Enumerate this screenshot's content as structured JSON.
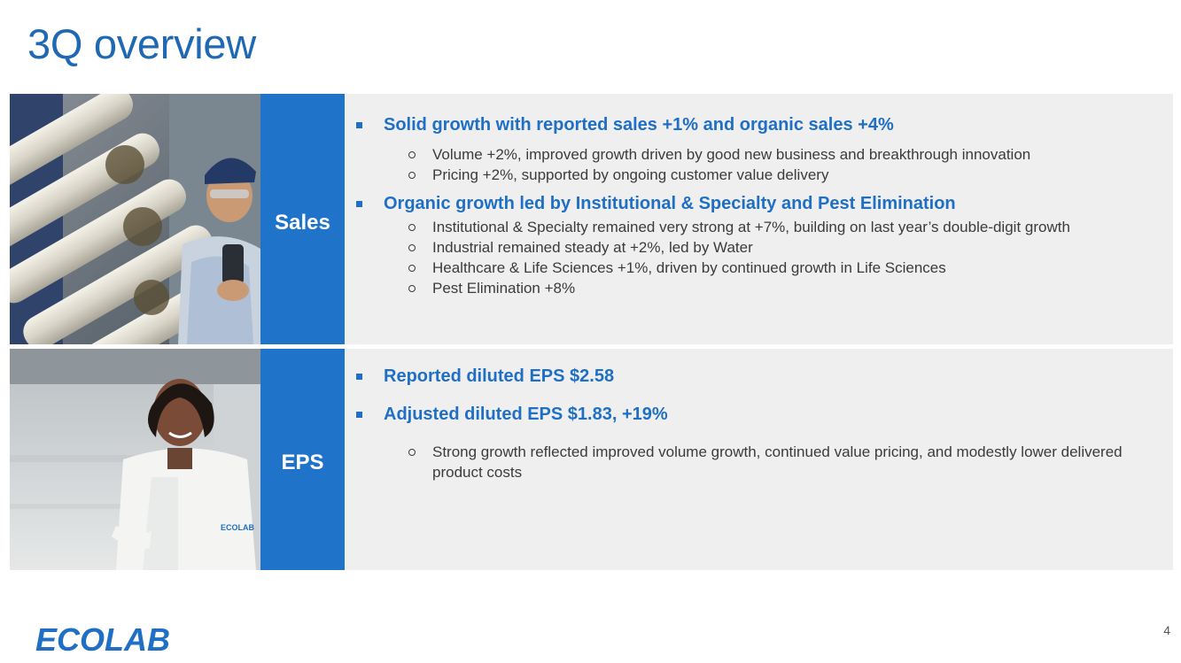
{
  "slide": {
    "title": "3Q overview",
    "page_number": "4",
    "logo_text": "ECOLAB"
  },
  "sections": [
    {
      "label": "Sales",
      "items": [
        {
          "text": "Solid growth with reported sales +1% and organic sales +4%",
          "subitems": [
            "Volume +2%, improved growth driven by good new business and breakthrough innovation",
            "Pricing +2%, supported by ongoing customer value delivery"
          ]
        },
        {
          "text": "Organic growth led by Institutional & Specialty and Pest Elimination",
          "subitems": [
            "Institutional & Specialty remained very strong at +7%, building on last year’s double-digit growth",
            "Industrial remained steady at +2%, led by Water",
            "Healthcare & Life Sciences +1%, driven by continued growth in Life Sciences",
            "Pest Elimination +8%"
          ]
        }
      ]
    },
    {
      "label": "EPS",
      "items": [
        {
          "text": "Reported diluted EPS $2.58",
          "subitems": []
        },
        {
          "text": "Adjusted diluted EPS $1.83, +19%",
          "subitems": [
            "Strong growth reflected improved volume growth, continued value pricing, and modestly lower delivered product costs"
          ]
        }
      ]
    }
  ],
  "colors": {
    "brand_blue": "#1f6fc5",
    "label_box": "#1f73c9",
    "band_bg": "#efefef"
  }
}
